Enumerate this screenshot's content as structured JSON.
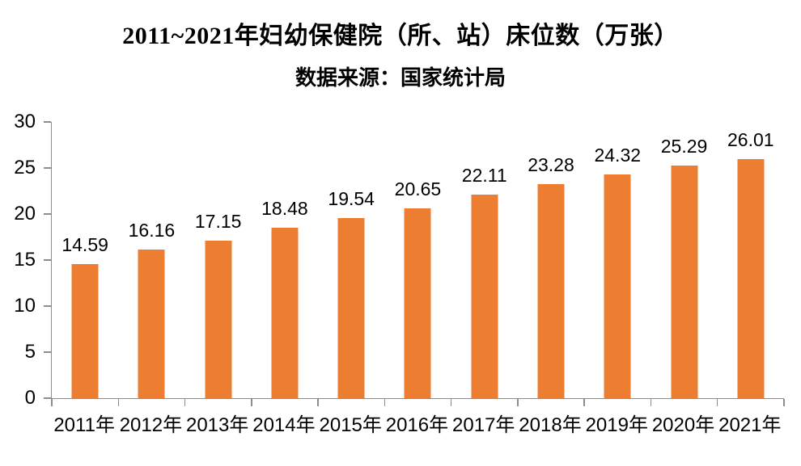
{
  "chart_data": {
    "type": "bar",
    "title": "2011~2021年妇幼保健院（所、站）床位数（万张）",
    "subtitle": "数据来源：国家统计局",
    "categories": [
      "2011年",
      "2012年",
      "2013年",
      "2014年",
      "2015年",
      "2016年",
      "2017年",
      "2018年",
      "2019年",
      "2020年",
      "2021年"
    ],
    "values": [
      14.59,
      16.16,
      17.15,
      18.48,
      19.54,
      20.65,
      22.11,
      23.28,
      24.32,
      25.29,
      26.01
    ],
    "value_labels": [
      "14.59",
      "16.16",
      "17.15",
      "18.48",
      "19.54",
      "20.65",
      "22.11",
      "23.28",
      "24.32",
      "25.29",
      "26.01"
    ],
    "xlabel": "",
    "ylabel": "",
    "ylim": [
      0,
      30
    ],
    "yticks": [
      0,
      5,
      10,
      15,
      20,
      25,
      30
    ],
    "grid": false,
    "legend_position": "none",
    "bar_color": "#ED7D31",
    "axis_color": "#8C8C8C",
    "text_color": "#000000",
    "background_color": "#FFFFFF"
  }
}
